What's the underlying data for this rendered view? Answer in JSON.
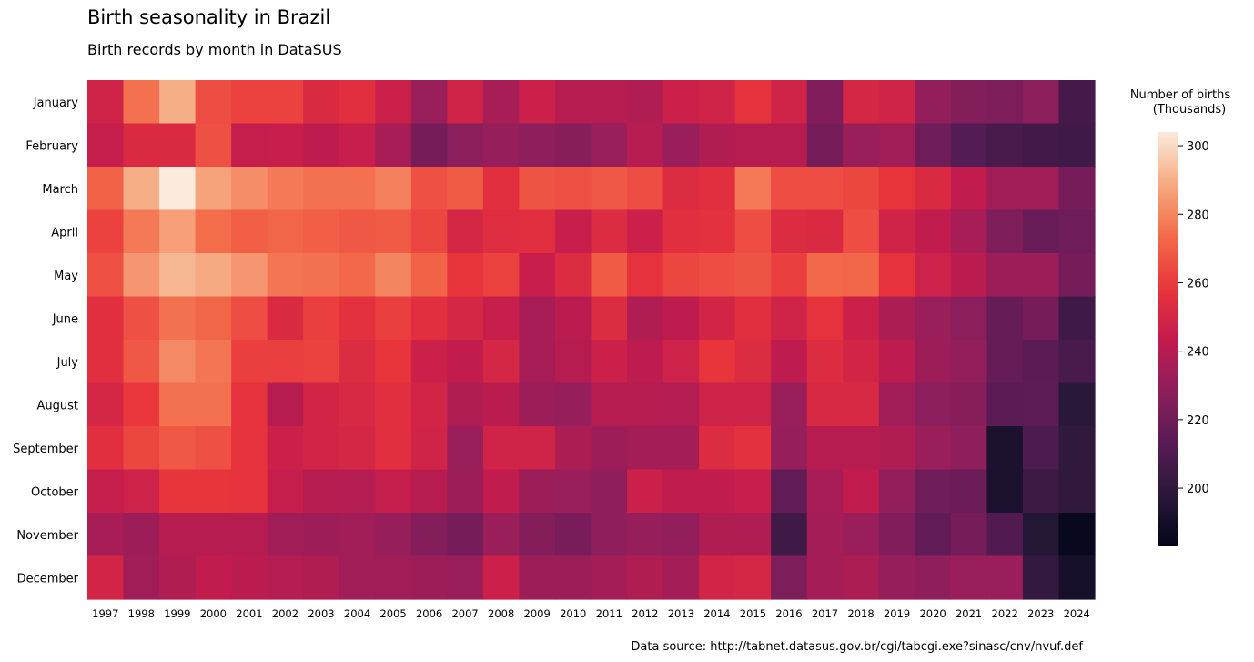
{
  "chart_data": {
    "type": "heatmap",
    "title": "Birth seasonality in Brazil",
    "subtitle": "Birth records by month in DataSUS",
    "source": "Data source: http://tabnet.datasus.gov.br/cgi/tabcgi.exe?sinasc/cnv/nvuf.def",
    "colorbar": {
      "title_lines": [
        "Number of births",
        "(Thousands)"
      ],
      "ticks": [
        200,
        220,
        240,
        260,
        280,
        300
      ],
      "range": [
        183,
        304
      ]
    },
    "x": [
      "1997",
      "1998",
      "1999",
      "2000",
      "2001",
      "2002",
      "2003",
      "2004",
      "2005",
      "2006",
      "2007",
      "2008",
      "2009",
      "2010",
      "2011",
      "2012",
      "2013",
      "2014",
      "2015",
      "2016",
      "2017",
      "2018",
      "2019",
      "2020",
      "2021",
      "2022",
      "2023",
      "2024"
    ],
    "y": [
      "January",
      "February",
      "March",
      "April",
      "May",
      "June",
      "July",
      "August",
      "September",
      "October",
      "November",
      "December"
    ],
    "values": [
      [
        248,
        275,
        290,
        265,
        262,
        262,
        252,
        255,
        246,
        232,
        248,
        236,
        246,
        240,
        240,
        238,
        246,
        248,
        257,
        248,
        225,
        250,
        248,
        230,
        226,
        224,
        228,
        207
      ],
      [
        244,
        252,
        252,
        266,
        244,
        245,
        242,
        245,
        236,
        222,
        228,
        231,
        229,
        227,
        232,
        240,
        232,
        238,
        240,
        240,
        222,
        232,
        234,
        220,
        212,
        208,
        206,
        205
      ],
      [
        271,
        290,
        304,
        287,
        282,
        277,
        275,
        275,
        279,
        266,
        269,
        255,
        267,
        266,
        268,
        265,
        253,
        255,
        277,
        265,
        265,
        263,
        258,
        252,
        243,
        234,
        234,
        222
      ],
      [
        262,
        277,
        286,
        274,
        270,
        272,
        270,
        268,
        269,
        263,
        250,
        254,
        255,
        245,
        253,
        246,
        255,
        256,
        265,
        253,
        252,
        265,
        248,
        243,
        236,
        224,
        218,
        220
      ],
      [
        266,
        284,
        292,
        289,
        284,
        276,
        275,
        273,
        280,
        271,
        258,
        262,
        245,
        253,
        269,
        257,
        263,
        265,
        267,
        261,
        273,
        272,
        257,
        247,
        241,
        233,
        233,
        222
      ],
      [
        255,
        266,
        275,
        272,
        265,
        252,
        261,
        256,
        261,
        255,
        250,
        245,
        236,
        241,
        253,
        238,
        242,
        249,
        255,
        248,
        257,
        246,
        237,
        232,
        228,
        217,
        222,
        205
      ],
      [
        255,
        268,
        281,
        276,
        261,
        261,
        262,
        253,
        258,
        246,
        243,
        250,
        236,
        240,
        246,
        242,
        247,
        258,
        253,
        242,
        253,
        249,
        242,
        233,
        230,
        217,
        214,
        208
      ],
      [
        250,
        259,
        275,
        275,
        257,
        240,
        249,
        251,
        255,
        249,
        238,
        241,
        233,
        231,
        240,
        240,
        239,
        247,
        247,
        232,
        251,
        251,
        234,
        228,
        227,
        214,
        215,
        198
      ],
      [
        255,
        263,
        268,
        266,
        257,
        246,
        249,
        250,
        255,
        248,
        232,
        248,
        248,
        237,
        233,
        235,
        235,
        253,
        256,
        231,
        240,
        240,
        238,
        232,
        229,
        193,
        210,
        200
      ],
      [
        244,
        247,
        258,
        258,
        257,
        244,
        240,
        239,
        244,
        240,
        233,
        243,
        233,
        232,
        229,
        246,
        243,
        243,
        245,
        216,
        236,
        243,
        230,
        220,
        219,
        193,
        204,
        200
      ],
      [
        236,
        233,
        240,
        240,
        240,
        234,
        233,
        234,
        231,
        226,
        222,
        232,
        226,
        223,
        229,
        231,
        230,
        238,
        238,
        205,
        235,
        232,
        225,
        216,
        222,
        211,
        196,
        185
      ],
      [
        249,
        234,
        238,
        243,
        241,
        239,
        238,
        234,
        234,
        233,
        232,
        246,
        233,
        233,
        235,
        238,
        235,
        249,
        250,
        224,
        235,
        237,
        231,
        229,
        232,
        232,
        201,
        191
      ]
    ]
  }
}
